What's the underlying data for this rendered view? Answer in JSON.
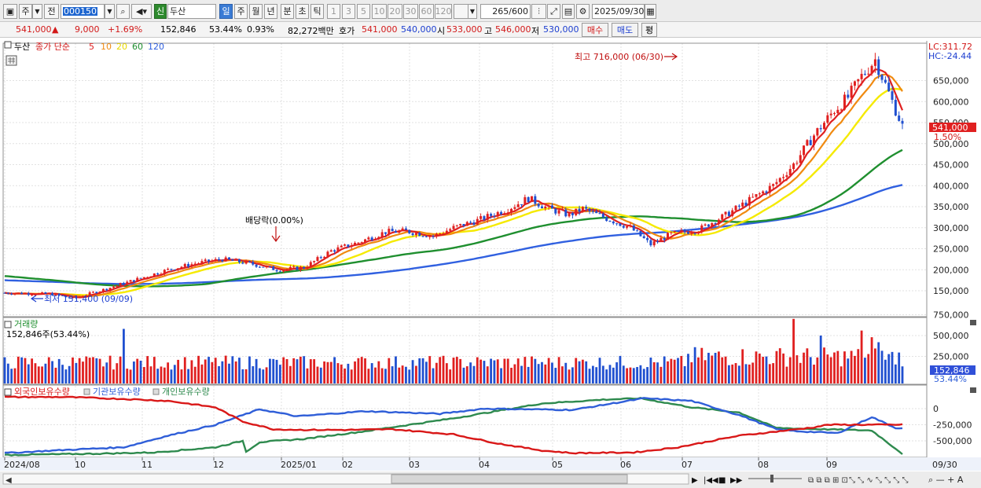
{
  "toolbar": {
    "type1": "주",
    "type2": "전",
    "stock_code": "000150",
    "badge": "신",
    "stock_name": "두산",
    "periods": [
      "일",
      "주",
      "월",
      "년",
      "분",
      "초",
      "틱"
    ],
    "intervals": [
      "1",
      "3",
      "5",
      "10",
      "20",
      "30",
      "60",
      "120"
    ],
    "count": "265",
    "count_max": "/600",
    "date": "2025/09/30"
  },
  "quote": {
    "price": "541,000",
    "change": "9,000",
    "change_pct": "+1.69%",
    "volume": "152,846",
    "vol_ratio": "53.44%",
    "turnover": "0.93%",
    "trade_value": "82,272백만",
    "bid_label": "호가",
    "ask": "541,000",
    "bid": "540,000",
    "open_label": "시",
    "open": "533,000",
    "high_label": "고",
    "high": "546,000",
    "low_label": "저",
    "low": "530,000",
    "buy_label": "매수",
    "sell_label": "매도",
    "extra_label": "평"
  },
  "price_panel": {
    "title": "두산",
    "ma_label": "종가 단순",
    "ma_periods": [
      {
        "p": "5",
        "color": "#e02020"
      },
      {
        "p": "10",
        "color": "#f08a10"
      },
      {
        "p": "20",
        "color": "#e8d800"
      },
      {
        "p": "60",
        "color": "#1f8f2f"
      },
      {
        "p": "120",
        "color": "#3060e0"
      }
    ],
    "lc": "LC:311.72",
    "hc": "HC:-24.44",
    "high_note": "최고 716,000 (06/30)",
    "low_note": "최저 131,400 (09/09)",
    "dividend_note": "배당락(0.00%)",
    "current_price": "541,000",
    "current_pct": "1.50%",
    "y_labels": [
      "650,000",
      "600,000",
      "550,000",
      "500,000",
      "450,000",
      "400,000",
      "350,000",
      "300,000",
      "250,000",
      "200,000",
      "150,000"
    ]
  },
  "volume_panel": {
    "title": "거래량",
    "subtitle": "152,846주(53.44%)",
    "current": "152,846",
    "current_pct": "53.44%",
    "y_labels": [
      "750,000",
      "500,000",
      "250,000"
    ]
  },
  "holdings_panel": {
    "legend": [
      "외국인보유수량",
      "기관보유수량",
      "개인보유수량"
    ],
    "legend_colors": [
      "#d91818",
      "#2f5ed8",
      "#2e8a4e"
    ],
    "y_labels": [
      "0",
      "-250,000",
      "-500,000"
    ]
  },
  "x_axis": [
    "2024/08",
    "10",
    "11",
    "12",
    "2025/01",
    "02",
    "03",
    "04",
    "05",
    "06",
    "07",
    "08",
    "09"
  ],
  "x_axis_end": "09/30"
}
